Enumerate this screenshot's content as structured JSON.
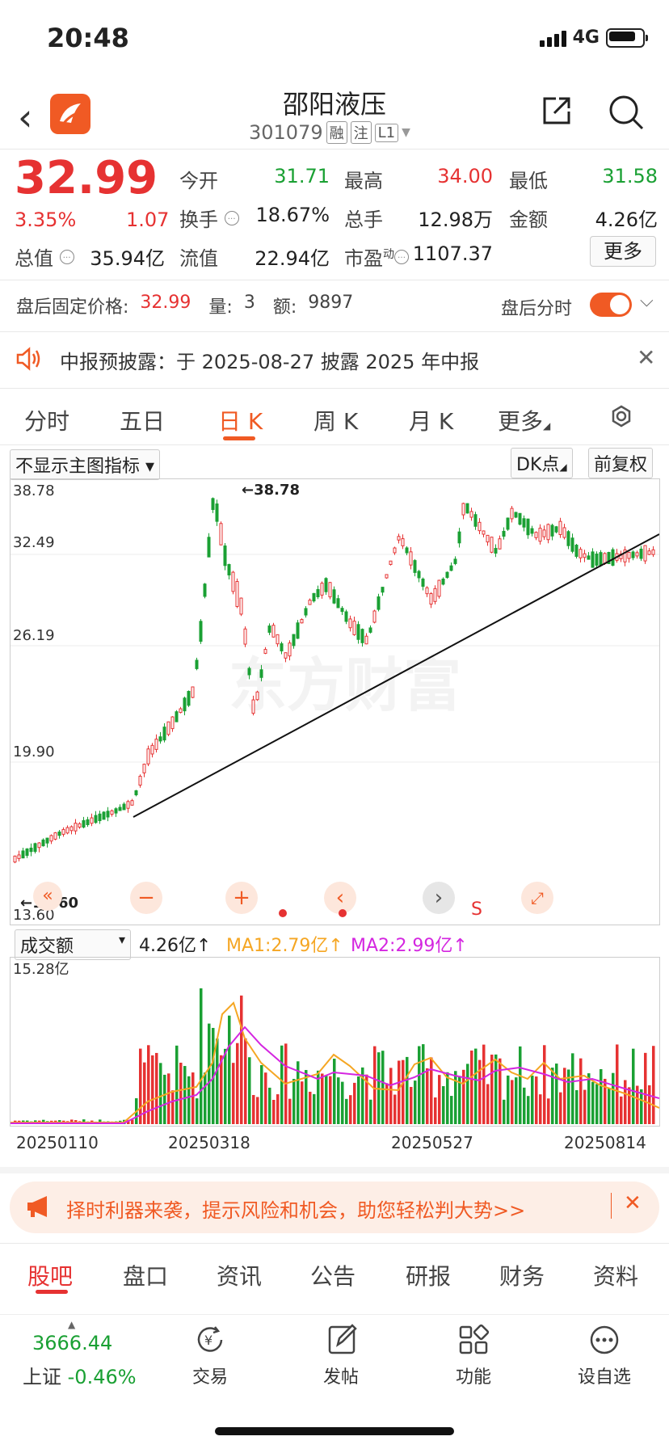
{
  "status": {
    "time": "20:48",
    "network": "4G"
  },
  "header": {
    "name": "邵阳液压",
    "code": "301079",
    "tags": [
      "融",
      "注",
      "L1"
    ]
  },
  "quote": {
    "price": "32.99",
    "pct": "3.35%",
    "change": "1.07",
    "stats": [
      {
        "label": "今开",
        "value": "31.71",
        "color": "green"
      },
      {
        "label": "最高",
        "value": "34.00",
        "color": "red"
      },
      {
        "label": "最低",
        "value": "31.58",
        "color": "green"
      },
      {
        "label": "换手",
        "value": "18.67%",
        "color": "dark"
      },
      {
        "label": "总手",
        "value": "12.98万",
        "color": "dark"
      },
      {
        "label": "金额",
        "value": "4.26亿",
        "color": "dark"
      },
      {
        "label": "总值",
        "value": "35.94亿",
        "color": "dark"
      },
      {
        "label": "流值",
        "value": "22.94亿",
        "color": "dark"
      },
      {
        "label": "市盈",
        "value": "1107.37",
        "color": "dark"
      }
    ],
    "pe_sup": "动",
    "more": "更多"
  },
  "after_hours": {
    "label": "盘后固定价格:",
    "price": "32.99",
    "vol_label": "量:",
    "vol": "3",
    "amt_label": "额:",
    "amt": "9897",
    "toggle_label": "盘后分时"
  },
  "notice": {
    "text": "中报预披露：于 2025-08-27 披露 2025 年中报"
  },
  "tabs": [
    "分时",
    "五日",
    "日 K",
    "周 K",
    "月 K",
    "更多"
  ],
  "chart_toolbar": {
    "indicator": "不显示主图指标",
    "dk": "DK点",
    "adjust": "前复权"
  },
  "chart_data": {
    "type": "candlestick",
    "y_ticks": [
      "38.78",
      "32.49",
      "26.19",
      "19.90",
      "13.60"
    ],
    "high_label": "←38.78",
    "low_label": "←13.60",
    "watermark": "东方财富",
    "x_ticks": [
      "20250110",
      "20250318",
      "20250527",
      "20250814"
    ],
    "volume": {
      "selector": "成交额",
      "value": "4.26亿↑",
      "ma1": "MA1:2.79亿↑",
      "ma2": "MA2:2.99亿↑",
      "max_label": "15.28亿"
    }
  },
  "chart_controls": {
    "s_label": "S"
  },
  "banner": {
    "text": "择时利器来袭，提示风险和机会，助您轻松判大势>>"
  },
  "bottom_tabs": [
    "股吧",
    "盘口",
    "资讯",
    "公告",
    "研报",
    "财务",
    "资料"
  ],
  "index": {
    "value": "3666.44",
    "name": "上证",
    "pct": "-0.46%"
  },
  "toolbar": [
    "交易",
    "发帖",
    "功能",
    "设自选"
  ]
}
